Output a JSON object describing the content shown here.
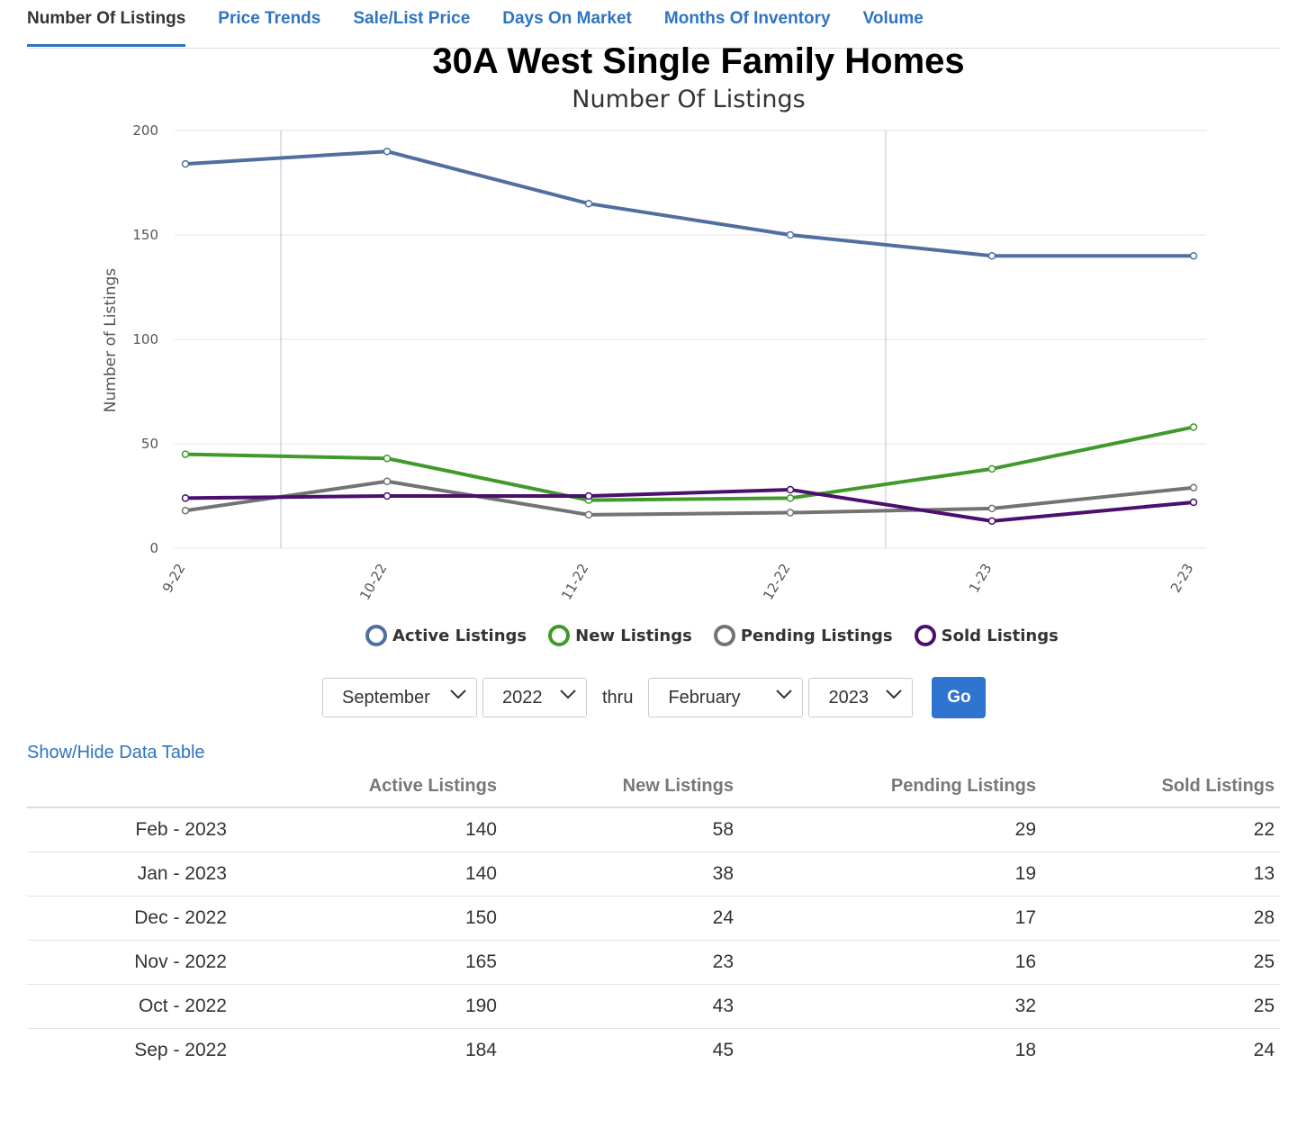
{
  "tabs": [
    {
      "label": "Number Of Listings",
      "active": true
    },
    {
      "label": "Price Trends"
    },
    {
      "label": "Sale/List Price"
    },
    {
      "label": "Days On Market"
    },
    {
      "label": "Months Of Inventory"
    },
    {
      "label": "Volume"
    }
  ],
  "chart_data": {
    "type": "line",
    "title": "30A West Single Family Homes",
    "subtitle": "Number Of Listings",
    "ylabel": "Number of Listings",
    "xlabel": "",
    "ylim": [
      0,
      200
    ],
    "yticks": [
      0,
      50,
      100,
      150,
      200
    ],
    "categories": [
      "9-22",
      "10-22",
      "11-22",
      "12-22",
      "1-23",
      "2-23"
    ],
    "series": [
      {
        "name": "Active Listings",
        "color": "#4f6f9f",
        "values": [
          184,
          190,
          165,
          150,
          140,
          140
        ]
      },
      {
        "name": "New Listings",
        "color": "#3f9a2b",
        "values": [
          45,
          43,
          23,
          24,
          38,
          58
        ]
      },
      {
        "name": "Pending Listings",
        "color": "#737373",
        "values": [
          18,
          32,
          16,
          17,
          19,
          29
        ]
      },
      {
        "name": "Sold Listings",
        "color": "#4b0f6e",
        "values": [
          24,
          25,
          25,
          28,
          13,
          22
        ]
      }
    ],
    "grid": true,
    "legend_position": "bottom-center"
  },
  "range": {
    "from_month": "September",
    "from_year": "2022",
    "thru_label": "thru",
    "to_month": "February",
    "to_year": "2023",
    "go_label": "Go"
  },
  "table": {
    "toggle_label": "Show/Hide Data Table",
    "headers": [
      "",
      "Active Listings",
      "New Listings",
      "Pending Listings",
      "Sold Listings"
    ],
    "rows": [
      [
        "Feb - 2023",
        "140",
        "58",
        "29",
        "22"
      ],
      [
        "Jan - 2023",
        "140",
        "38",
        "19",
        "13"
      ],
      [
        "Dec - 2022",
        "150",
        "24",
        "17",
        "28"
      ],
      [
        "Nov - 2022",
        "165",
        "23",
        "16",
        "25"
      ],
      [
        "Oct - 2022",
        "190",
        "43",
        "32",
        "25"
      ],
      [
        "Sep - 2022",
        "184",
        "45",
        "18",
        "24"
      ]
    ]
  }
}
